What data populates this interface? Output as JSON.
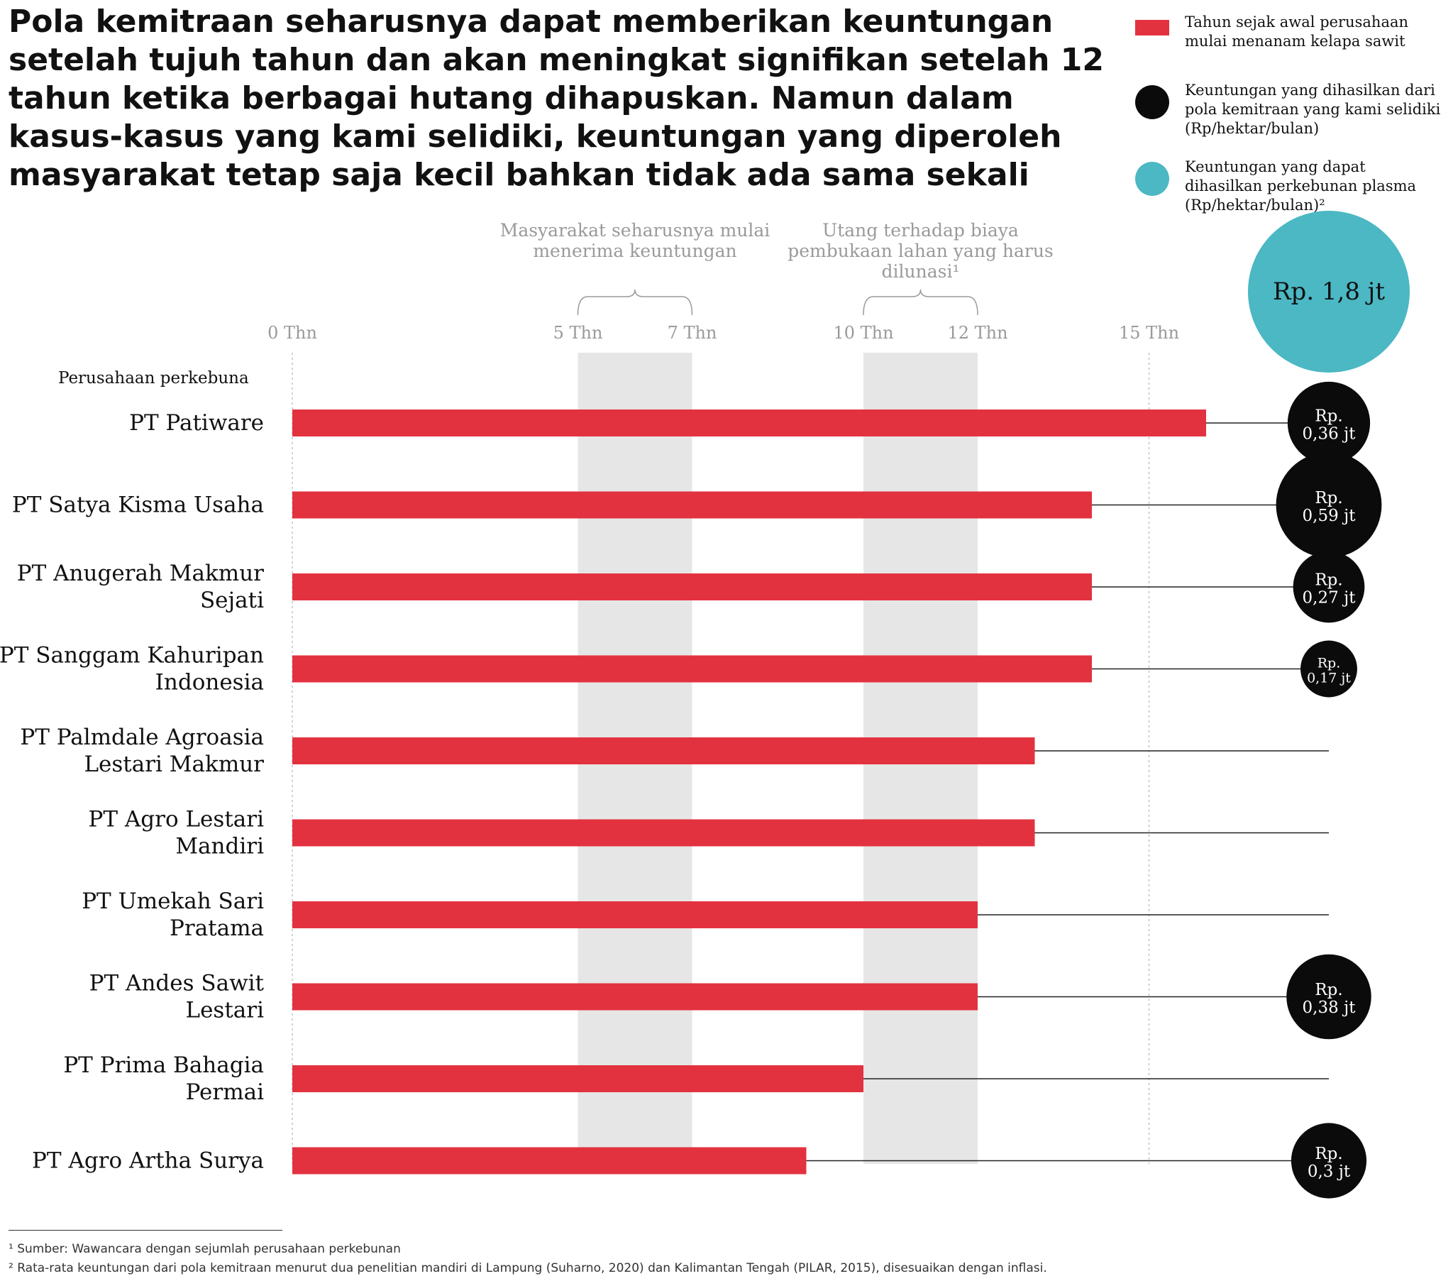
{
  "headline": "Pola kemitraan seharusnya dapat memberikan keuntungan setelah tujuh tahun dan akan meningkat signifikan setelah 12 tahun ketika berbagai hutang dihapuskan. Namun dalam kasus-kasus yang kami selidiki, keuntungan yang diperoleh masyarakat tetap saja kecil bahkan tidak ada sama sekali",
  "legend": {
    "bar": "Tahun sejak awal perusahaan mulai menanam kelapa sawit",
    "black_circle": "Keuntungan yang dihasilkan dari pola kemitraan yang kami selidiki (Rp/hektar/bulan)",
    "teal_circle": "Keuntungan yang dapat dihasilkan perkebunan plasma (Rp/hektar/bulan)²"
  },
  "colors": {
    "bar": "#e3323f",
    "profit_circle": "#0b0b0b",
    "plasma_circle": "#4bb8c4",
    "highlight_band": "#e6e6e6"
  },
  "footnotes": [
    "¹ Sumber: Wawancara dengan sejumlah perusahaan perkebunan",
    "² Rata-rata keuntungan dari pola kemitraan menurut dua penelitian mandiri di Lampung (Suharno, 2020) dan Kalimantan Tengah (PILAR, 2015), disesuaikan dengan inflasi."
  ],
  "chart_data": {
    "type": "bar",
    "orientation": "horizontal",
    "category_header": "Perusahaan perkebuna",
    "x_ticks": [
      {
        "value": 0,
        "label": "0 Thn"
      },
      {
        "value": 5,
        "label": "5 Thn"
      },
      {
        "value": 7,
        "label": "7 Thn"
      },
      {
        "value": 10,
        "label": "10 Thn"
      },
      {
        "value": 12,
        "label": "12 Thn"
      },
      {
        "value": 15,
        "label": "15 Thn"
      }
    ],
    "xlim": [
      0,
      18
    ],
    "grid": true,
    "bands": [
      {
        "from": 5,
        "to": 7,
        "label": "Masyarakat seharusnya mulai menerima keuntungan"
      },
      {
        "from": 10,
        "to": 12,
        "label": "Utang terhadap biaya pembukaan lahan yang harus dilunasi¹"
      }
    ],
    "rows": [
      {
        "company": "PT Patiware",
        "years": 16,
        "profit": 0.36,
        "profit_label": "Rp. 0,36 jt"
      },
      {
        "company": "PT Satya Kisma Usaha",
        "years": 14,
        "profit": 0.59,
        "profit_label": "Rp. 0,59 jt"
      },
      {
        "company": "PT Anugerah Makmur Sejati",
        "years": 14,
        "profit": 0.27,
        "profit_label": "Rp. 0,27 jt"
      },
      {
        "company": "PT Sanggam Kahuripan Indonesia",
        "years": 14,
        "profit": 0.17,
        "profit_label": "Rp. 0,17 jt"
      },
      {
        "company": "PT Palmdale Agroasia Lestari Makmur",
        "years": 13,
        "profit": null,
        "profit_label": ""
      },
      {
        "company": "PT Agro Lestari Mandiri",
        "years": 13,
        "profit": null,
        "profit_label": ""
      },
      {
        "company": "PT Umekah Sari Pratama",
        "years": 12,
        "profit": null,
        "profit_label": ""
      },
      {
        "company": "PT Andes Sawit Lestari",
        "years": 12,
        "profit": 0.38,
        "profit_label": "Rp. 0,38 jt"
      },
      {
        "company": "PT Prima Bahagia Permai",
        "years": 10,
        "profit": null,
        "profit_label": ""
      },
      {
        "company": "PT Agro Artha Surya",
        "years": 9,
        "profit": 0.3,
        "profit_label": "Rp. 0,3 jt"
      }
    ],
    "reference": {
      "value": 1.8,
      "label": "Rp. 1,8 jt"
    }
  }
}
